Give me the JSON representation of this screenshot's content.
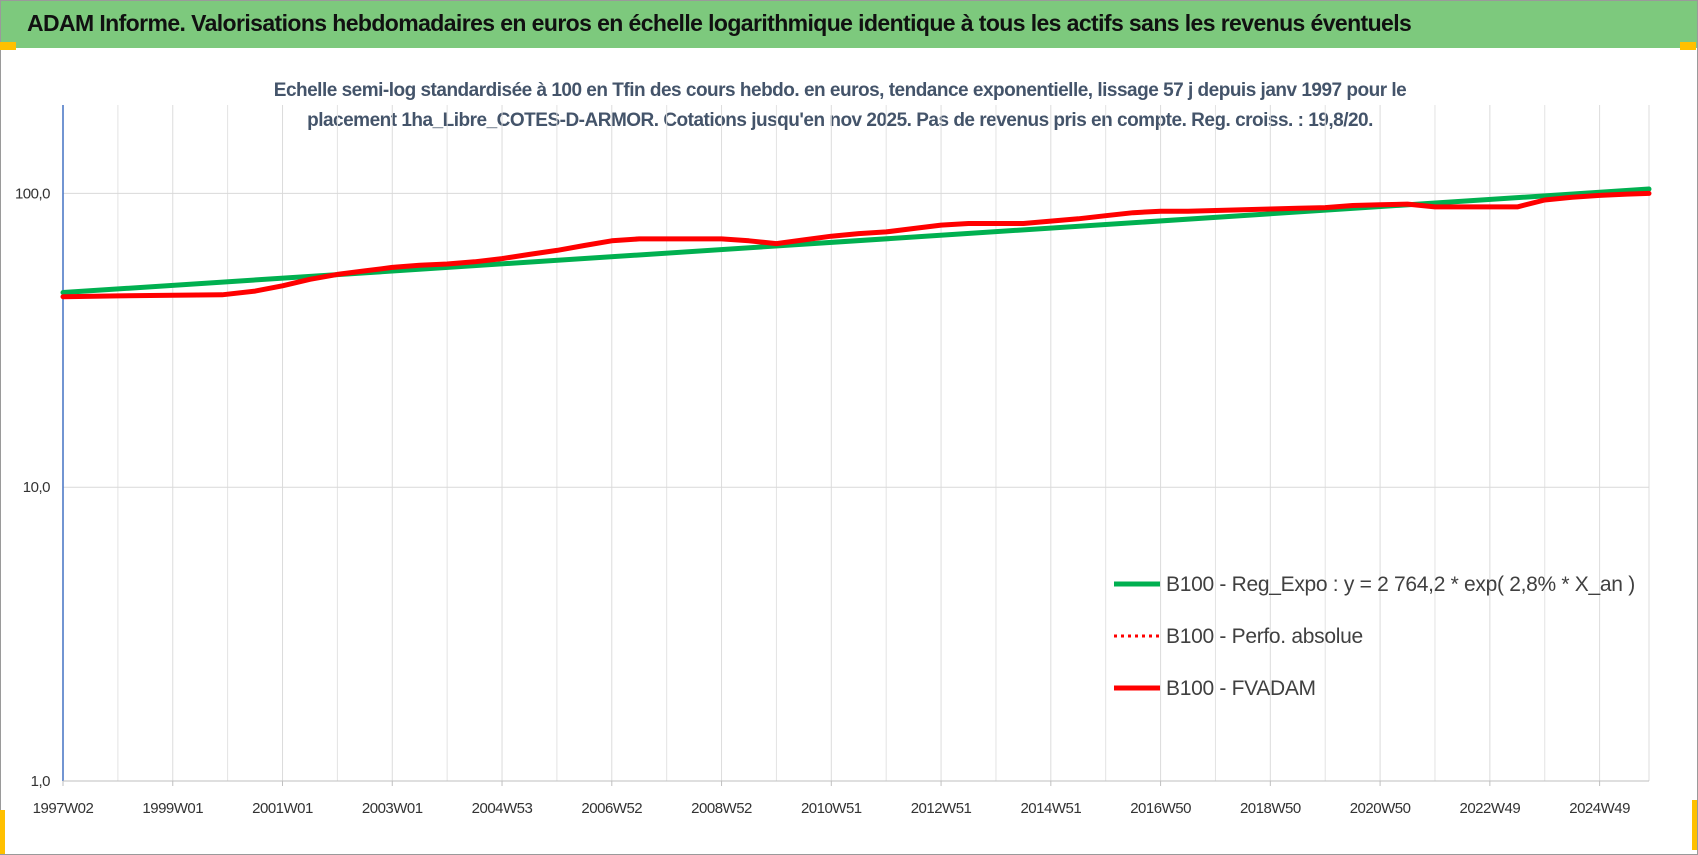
{
  "banner": {
    "title": "ADAM Informe. Valorisations hebdomadaires en euros en échelle logarithmique identique à tous les actifs sans les revenus éventuels",
    "background": "#7dc97d",
    "corner_color": "#ffc000"
  },
  "chart_data": {
    "type": "line",
    "title_lines": [
      "Echelle semi-log standardisée à 100 en Tfin des cours hebdo. en euros, tendance exponentielle, lissage 57 j depuis janv 1997 pour le",
      "placement 1ha_Libre_COTES-D-ARMOR. Cotations jusqu'en nov 2025.  Pas de revenus pris en compte. Reg. croiss. : 19,8/20."
    ],
    "y_scale": "log",
    "ylim": [
      1,
      200
    ],
    "y_ticks": [
      {
        "value": 1,
        "label": "1,0"
      },
      {
        "value": 10,
        "label": "10,0"
      },
      {
        "value": 100,
        "label": "100,0"
      }
    ],
    "xlim": [
      1997.0,
      2025.9
    ],
    "x_ticks": [
      {
        "value": 1997.0,
        "label": "1997W02"
      },
      {
        "value": 1999.0,
        "label": "1999W01"
      },
      {
        "value": 2001.0,
        "label": "2001W01"
      },
      {
        "value": 2003.0,
        "label": "2003W01"
      },
      {
        "value": 2005.0,
        "label": "2004W53"
      },
      {
        "value": 2007.0,
        "label": "2006W52"
      },
      {
        "value": 2009.0,
        "label": "2008W52"
      },
      {
        "value": 2011.0,
        "label": "2010W51"
      },
      {
        "value": 2013.0,
        "label": "2012W51"
      },
      {
        "value": 2015.0,
        "label": "2014W51"
      },
      {
        "value": 2017.0,
        "label": "2016W50"
      },
      {
        "value": 2019.0,
        "label": "2018W50"
      },
      {
        "value": 2021.0,
        "label": "2020W50"
      },
      {
        "value": 2023.0,
        "label": "2022W49"
      },
      {
        "value": 2025.0,
        "label": "2024W49"
      }
    ],
    "grid": "vertical",
    "legend_position": "lower-right",
    "series": [
      {
        "name": "B100 - Reg_Expo : y = 2 764,2 * exp( 2,8% *  X_an )",
        "color": "#00b050",
        "style": "solid",
        "x": [
          1997.0,
          2025.9
        ],
        "y": [
          46.0,
          103.5
        ]
      },
      {
        "name": "B100 - Perfo. absolue",
        "color": "#ff0000",
        "style": "dotted",
        "x": [],
        "y": []
      },
      {
        "name": "B100 - FVADAM",
        "color": "#ff0000",
        "style": "solid",
        "x": [
          1997.0,
          1998.0,
          1999.0,
          1999.9,
          2000.5,
          2001.0,
          2001.5,
          2002.0,
          2002.5,
          2003.0,
          2003.5,
          2004.0,
          2004.5,
          2005.0,
          2005.5,
          2006.0,
          2006.5,
          2007.0,
          2007.5,
          2008.0,
          2008.5,
          2009.0,
          2009.5,
          2010.0,
          2010.5,
          2011.0,
          2011.5,
          2012.0,
          2012.5,
          2013.0,
          2013.5,
          2014.0,
          2014.5,
          2015.0,
          2015.5,
          2016.0,
          2016.5,
          2017.0,
          2017.5,
          2018.0,
          2018.5,
          2019.0,
          2019.5,
          2020.0,
          2020.5,
          2021.0,
          2021.5,
          2022.0,
          2022.5,
          2023.0,
          2023.5,
          2024.0,
          2024.5,
          2025.0,
          2025.5,
          2025.9
        ],
        "y": [
          44.5,
          44.8,
          45.0,
          45.2,
          46.5,
          48.5,
          51.0,
          53.0,
          54.5,
          56.0,
          57.0,
          57.5,
          58.5,
          60.0,
          62.0,
          64.0,
          66.5,
          69.0,
          70.0,
          70.0,
          70.0,
          70.0,
          69.0,
          67.5,
          69.5,
          71.5,
          73.0,
          74.0,
          76.0,
          78.0,
          79.0,
          79.0,
          79.0,
          80.5,
          82.0,
          84.0,
          86.0,
          87.0,
          87.0,
          87.5,
          88.0,
          88.5,
          89.0,
          89.5,
          91.0,
          91.5,
          92.0,
          90.0,
          90.0,
          90.0,
          90.0,
          95.0,
          97.0,
          98.5,
          99.5,
          100.0
        ]
      }
    ]
  }
}
